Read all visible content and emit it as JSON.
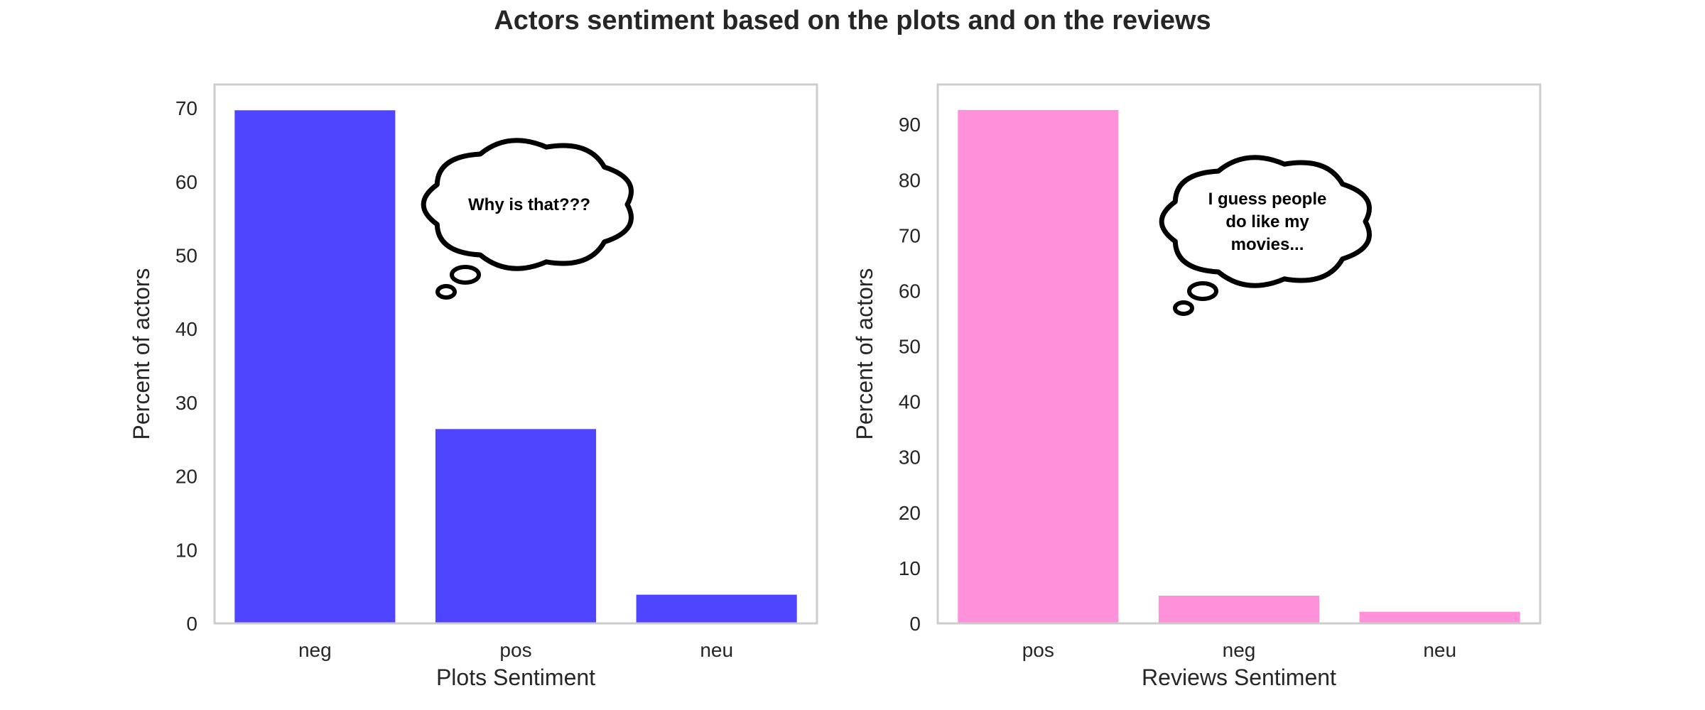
{
  "title": "Actors sentiment based on the plots and on the reviews",
  "chart_data": [
    {
      "type": "bar",
      "categories": [
        "neg",
        "pos",
        "neu"
      ],
      "values": [
        69.7,
        26.4,
        3.9
      ],
      "xlabel": "Plots Sentiment",
      "ylabel": "Percent of actors",
      "ylim": [
        0,
        73.2
      ],
      "yticks": [
        0,
        10,
        20,
        30,
        40,
        50,
        60,
        70
      ],
      "color": "#4f45ff",
      "grid": false,
      "annotation": {
        "lines": [
          "Why is that???"
        ]
      }
    },
    {
      "type": "bar",
      "categories": [
        "pos",
        "neg",
        "neu"
      ],
      "values": [
        92.6,
        5.0,
        2.1
      ],
      "xlabel": "Reviews Sentiment",
      "ylabel": "Percent of actors",
      "ylim": [
        0,
        97.2
      ],
      "yticks": [
        0,
        10,
        20,
        30,
        40,
        50,
        60,
        70,
        80,
        90
      ],
      "color": "#ff91da",
      "grid": false,
      "annotation": {
        "lines": [
          "I guess people",
          "do like my",
          "movies..."
        ]
      }
    }
  ]
}
